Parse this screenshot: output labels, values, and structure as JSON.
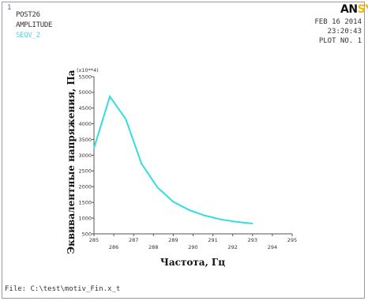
{
  "window": {
    "number": "1",
    "header_left": [
      "POST26",
      "AMPLITUDE",
      "SEQV_2"
    ],
    "logo_part1": "AN",
    "logo_part2": "SYS",
    "date": "FEB 16 2014",
    "time": "23:20:43",
    "plot_no": "PLOT NO.   1",
    "file": "File: C:\\test\\motiv_Fin.x_t",
    "colors": {
      "curve": "#33dddd",
      "axes": "#555555",
      "seqv": "#5ad0e0",
      "logo_accent": "#f2b600"
    }
  },
  "chart_data": {
    "type": "line",
    "title": "",
    "xlabel": "Частота, Гц",
    "ylabel": "Эквивалентные напряжения, Па",
    "y_multiplier": "(x10**4)",
    "xlim": [
      285,
      295
    ],
    "ylim": [
      500,
      5500
    ],
    "xticks": [
      285,
      286,
      287,
      288,
      289,
      290,
      291,
      292,
      293,
      294,
      295
    ],
    "yticks": [
      500,
      1000,
      1500,
      2000,
      2500,
      3000,
      3500,
      4000,
      4500,
      5000,
      5500
    ],
    "grid": false,
    "x": [
      285,
      285.8,
      286.6,
      287.4,
      288.2,
      289,
      289.8,
      290.6,
      291.4,
      292.2,
      293
    ],
    "y": [
      3230,
      4870,
      4150,
      2730,
      1980,
      1520,
      1260,
      1080,
      960,
      880,
      830
    ]
  }
}
